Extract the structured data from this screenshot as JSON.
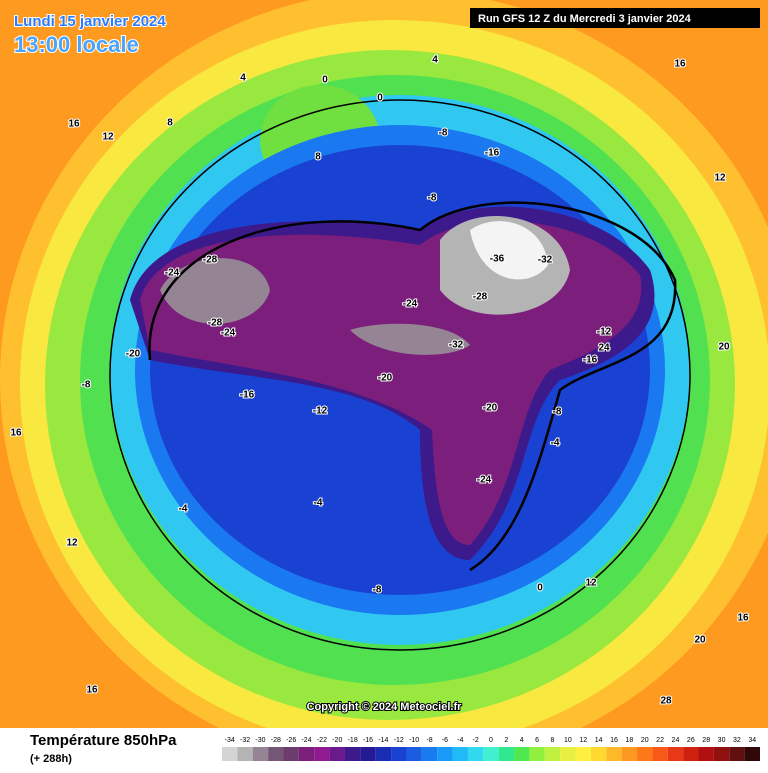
{
  "header": {
    "date": "Lundi 15 janvier 2024",
    "time": "13:00 locale",
    "run": "Run GFS 12 Z du Mercredi 3 janvier 2024"
  },
  "copyright": "Copyright © 2024 Meteociel.fr",
  "legend": {
    "title": "Température 850hPa",
    "lead": "(+ 288h)",
    "ticks": [
      -34,
      -32,
      -30,
      -28,
      -26,
      -24,
      -22,
      -20,
      -18,
      -16,
      -14,
      -12,
      -10,
      -8,
      -6,
      -4,
      -2,
      0,
      2,
      4,
      6,
      8,
      10,
      12,
      14,
      16,
      18,
      20,
      22,
      24,
      26,
      28,
      30,
      32,
      34
    ],
    "colors": [
      "#d4d4d4",
      "#b4b4b4",
      "#948494",
      "#765676",
      "#6c3c6c",
      "#7c1e7c",
      "#901a90",
      "#6a1a8c",
      "#3c1a8c",
      "#241a94",
      "#1a2cb4",
      "#1a42d2",
      "#1a5ce2",
      "#1a7af0",
      "#1a9af8",
      "#20baf8",
      "#30d8f0",
      "#40f0d0",
      "#30e890",
      "#50e850",
      "#90f040",
      "#c0f040",
      "#e8f040",
      "#fff040",
      "#ffd830",
      "#ffb828",
      "#ff9820",
      "#ff7818",
      "#f85818",
      "#e83818",
      "#d02010",
      "#b01010",
      "#901010",
      "#601010",
      "#300808"
    ]
  },
  "contour_labels": [
    "-24",
    "-28",
    "-32",
    "-36",
    "-32",
    "-24",
    "-28",
    "-28",
    "-24",
    "-20",
    "-16",
    "-20",
    "-20",
    "-24",
    "-16",
    "-8",
    "-8",
    "-8",
    "-8",
    "-8",
    "-4",
    "-4",
    "-4",
    "0",
    "0",
    "4",
    "4",
    "8",
    "8",
    "12",
    "12",
    "12",
    "12",
    "16",
    "16",
    "16",
    "16",
    "16",
    "20",
    "20",
    "24",
    "28",
    "-12",
    "-12",
    "-16",
    "0"
  ]
}
